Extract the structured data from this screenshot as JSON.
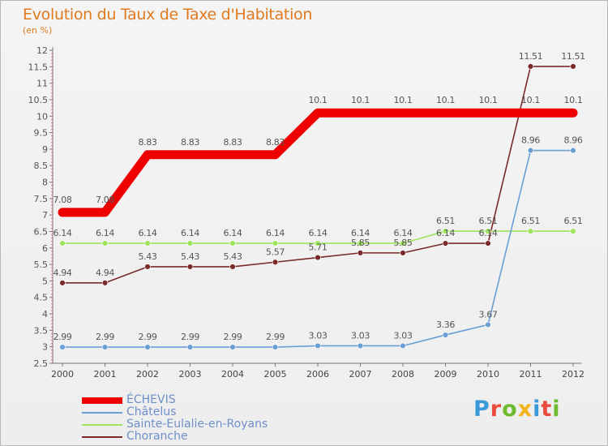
{
  "title": "Evolution du Taux de Taxe d'Habitation",
  "unit": "(en %)",
  "logo": {
    "text": "Proxiti",
    "colors": [
      "#3a9ad9",
      "#e94b3c",
      "#6dbb2e",
      "#f2b21c",
      "#3a9ad9",
      "#e94b3c",
      "#6dbb2e"
    ]
  },
  "chart_data": {
    "type": "line",
    "x": [
      "2000",
      "2001",
      "2002",
      "2003",
      "2004",
      "2005",
      "2006",
      "2007",
      "2008",
      "2009",
      "2010",
      "2011",
      "2012"
    ],
    "ylim": [
      2.5,
      12
    ],
    "yticks": [
      "2.5",
      "3",
      "3.5",
      "4",
      "4.5",
      "5",
      "5.5",
      "6",
      "6.5",
      "7",
      "7.5",
      "8",
      "8.5",
      "9",
      "9.5",
      "10",
      "10.5",
      "11",
      "11.5",
      "12"
    ],
    "grid": false,
    "legend_position": "bottom-left",
    "series": [
      {
        "name": "ÉCHEVIS",
        "color": "#ee0000",
        "values": [
          7.08,
          7.08,
          8.83,
          8.83,
          8.83,
          8.83,
          10.1,
          10.1,
          10.1,
          10.1,
          10.1,
          10.1,
          10.1
        ],
        "labels": [
          "7.08",
          "7.08",
          "8.83",
          "8.83",
          "8.83",
          "8.83",
          "10.1",
          "10.1",
          "10.1",
          "10.1",
          "10.1",
          "10.1",
          "10.1"
        ]
      },
      {
        "name": "Châtelus",
        "color": "#6a9fd6",
        "values": [
          2.99,
          2.99,
          2.99,
          2.99,
          2.99,
          2.99,
          3.03,
          3.03,
          3.03,
          3.36,
          3.67,
          8.96,
          8.96
        ],
        "labels": [
          "2.99",
          "2.99",
          "2.99",
          "2.99",
          "2.99",
          "2.99",
          "3.03",
          "3.03",
          "3.03",
          "3.36",
          "3.67",
          "8.96",
          "8.96"
        ]
      },
      {
        "name": "Sainte-Eulalie-en-Royans",
        "color": "#9ee35c",
        "values": [
          6.14,
          6.14,
          6.14,
          6.14,
          6.14,
          6.14,
          6.14,
          6.14,
          6.14,
          6.51,
          6.51,
          6.51,
          6.51
        ],
        "labels": [
          "6.14",
          "6.14",
          "6.14",
          "6.14",
          "6.14",
          "6.14",
          "6.14",
          "6.14",
          "6.14",
          "6.51",
          "6.51",
          "6.51",
          "6.51"
        ]
      },
      {
        "name": "Choranche",
        "color": "#7a2a2a",
        "values": [
          4.94,
          4.94,
          5.43,
          5.43,
          5.43,
          5.57,
          5.71,
          5.85,
          5.85,
          6.14,
          6.14,
          11.51,
          11.51
        ],
        "labels": [
          "4.94",
          "4.94",
          "5.43",
          "5.43",
          "5.43",
          "5.57",
          "5.71",
          "5.85",
          "5.85",
          "6.14",
          "6.14",
          "11.51",
          "11.51"
        ]
      }
    ]
  }
}
